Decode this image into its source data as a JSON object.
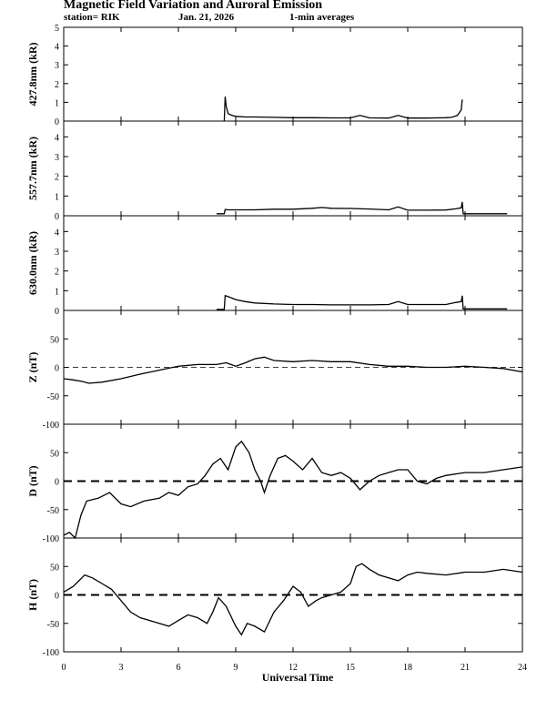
{
  "header": {
    "title": "Magnetic Field Variation and Auroral Emission",
    "station": "station= RIK",
    "date": "Jan. 21, 2026",
    "averaging": "1-min averages"
  },
  "chart_data": [
    {
      "type": "line",
      "id": "p427",
      "ylabel": "427.8nm (kR)",
      "ylim": [
        0,
        5
      ],
      "yticks": [
        0,
        1,
        2,
        3,
        4,
        5
      ],
      "grid": false,
      "xlim": [
        0,
        24
      ],
      "zero_line": "none",
      "x": [
        8.4,
        8.45,
        8.5,
        8.6,
        8.8,
        9.0,
        9.5,
        10,
        11,
        12,
        13,
        14,
        15,
        15.5,
        16,
        17,
        17.5,
        18,
        19,
        19.5,
        20,
        20.3,
        20.6,
        20.8,
        20.85
      ],
      "values": [
        0.0,
        1.3,
        0.8,
        0.4,
        0.3,
        0.25,
        0.22,
        0.22,
        0.2,
        0.18,
        0.18,
        0.17,
        0.17,
        0.3,
        0.17,
        0.16,
        0.3,
        0.16,
        0.16,
        0.17,
        0.18,
        0.2,
        0.3,
        0.6,
        1.15
      ]
    },
    {
      "type": "line",
      "id": "p557",
      "ylabel": "557.7nm (kR)",
      "ylim": [
        0,
        4.8
      ],
      "yticks": [
        0,
        1,
        2,
        3,
        4
      ],
      "grid": false,
      "xlim": [
        0,
        24
      ],
      "zero_line": "none",
      "x": [
        8.0,
        8.4,
        8.45,
        8.6,
        9.0,
        10,
        11,
        12,
        13,
        13.5,
        14,
        15,
        16,
        17,
        17.5,
        18,
        19,
        20,
        20.5,
        20.8,
        20.85,
        20.9,
        21,
        22,
        23,
        23.2
      ],
      "values": [
        0.1,
        0.1,
        0.32,
        0.3,
        0.3,
        0.3,
        0.33,
        0.33,
        0.38,
        0.42,
        0.38,
        0.37,
        0.34,
        0.3,
        0.45,
        0.28,
        0.28,
        0.29,
        0.35,
        0.4,
        0.7,
        0.1,
        0.1,
        0.1,
        0.1,
        0.1
      ]
    },
    {
      "type": "line",
      "id": "p630",
      "ylabel": "630.0nm (kR)",
      "ylim": [
        0,
        4.8
      ],
      "yticks": [
        0,
        1,
        2,
        3,
        4
      ],
      "grid": false,
      "xlim": [
        0,
        24
      ],
      "zero_line": "none",
      "x": [
        8.0,
        8.4,
        8.45,
        8.6,
        9.0,
        9.5,
        10,
        11,
        12,
        13,
        14,
        15,
        16,
        17,
        17.5,
        18,
        19,
        20,
        20.5,
        20.8,
        20.85,
        20.9,
        21,
        22,
        23,
        23.2
      ],
      "values": [
        0.05,
        0.05,
        0.75,
        0.7,
        0.55,
        0.45,
        0.38,
        0.33,
        0.3,
        0.3,
        0.28,
        0.28,
        0.28,
        0.3,
        0.45,
        0.3,
        0.3,
        0.3,
        0.4,
        0.45,
        0.75,
        0.08,
        0.08,
        0.08,
        0.08,
        0.08
      ]
    },
    {
      "type": "line",
      "id": "pz",
      "ylabel": "Z (nT)",
      "ylim": [
        -100,
        100
      ],
      "yticks": [
        -100,
        -50,
        0,
        50
      ],
      "grid": false,
      "xlim": [
        0,
        24
      ],
      "zero_line": "thin",
      "x": [
        0,
        0.5,
        1,
        1.3,
        2,
        3,
        4,
        5,
        6,
        7,
        8,
        8.5,
        9,
        9.5,
        10,
        10.5,
        11,
        12,
        13,
        14,
        15,
        16,
        17,
        18,
        19,
        20,
        21,
        22,
        23,
        24
      ],
      "values": [
        -20,
        -22,
        -25,
        -28,
        -26,
        -20,
        -12,
        -5,
        2,
        5,
        5,
        8,
        2,
        8,
        15,
        18,
        12,
        10,
        12,
        10,
        10,
        5,
        2,
        2,
        0,
        0,
        2,
        0,
        -2,
        -8
      ]
    },
    {
      "type": "line",
      "id": "pd",
      "ylabel": "D (nT)",
      "ylim": [
        -100,
        100
      ],
      "yticks": [
        -100,
        -50,
        0,
        50
      ],
      "grid": false,
      "xlim": [
        0,
        24
      ],
      "zero_line": "dashed",
      "x": [
        0,
        0.3,
        0.6,
        0.9,
        1.2,
        1.8,
        2.4,
        3,
        3.5,
        4.2,
        5,
        5.5,
        6,
        6.5,
        7,
        7.4,
        7.8,
        8.2,
        8.6,
        9,
        9.3,
        9.7,
        10,
        10.3,
        10.5,
        10.8,
        11.2,
        11.6,
        12,
        12.5,
        13,
        13.5,
        14,
        14.5,
        15,
        15.5,
        16,
        16.5,
        17,
        17.5,
        18,
        18.5,
        19,
        19.5,
        20,
        21,
        22,
        23,
        24
      ],
      "values": [
        -95,
        -90,
        -100,
        -60,
        -35,
        -30,
        -20,
        -40,
        -45,
        -35,
        -30,
        -20,
        -25,
        -10,
        -5,
        10,
        30,
        40,
        20,
        60,
        70,
        50,
        20,
        0,
        -20,
        10,
        40,
        45,
        35,
        20,
        40,
        15,
        10,
        15,
        5,
        -15,
        0,
        10,
        15,
        20,
        20,
        0,
        -5,
        5,
        10,
        15,
        15,
        20,
        25
      ]
    },
    {
      "type": "line",
      "id": "ph",
      "ylabel": "H (nT)",
      "ylim": [
        -100,
        100
      ],
      "yticks": [
        -100,
        -50,
        0,
        50
      ],
      "grid": false,
      "xlim": [
        0,
        24
      ],
      "zero_line": "dashed",
      "x": [
        0,
        0.5,
        0.8,
        1.1,
        1.5,
        2,
        2.5,
        3,
        3.5,
        4,
        5,
        5.5,
        6,
        6.5,
        7,
        7.5,
        7.8,
        8.1,
        8.5,
        9,
        9.3,
        9.6,
        10,
        10.5,
        11,
        11.5,
        12,
        12.4,
        12.8,
        13.2,
        13.5,
        14,
        14.5,
        15,
        15.3,
        15.6,
        16,
        16.5,
        17,
        17.5,
        18,
        18.5,
        19,
        20,
        21,
        22,
        23,
        24
      ],
      "values": [
        5,
        15,
        25,
        35,
        30,
        20,
        10,
        -10,
        -30,
        -40,
        -50,
        -55,
        -45,
        -35,
        -40,
        -50,
        -30,
        -5,
        -20,
        -55,
        -70,
        -50,
        -55,
        -65,
        -30,
        -10,
        15,
        5,
        -20,
        -10,
        -5,
        0,
        5,
        20,
        50,
        55,
        45,
        35,
        30,
        25,
        35,
        40,
        38,
        35,
        40,
        40,
        45,
        40
      ]
    }
  ],
  "xaxis": {
    "label": "Universal Time",
    "ticks": [
      0,
      3,
      6,
      9,
      12,
      15,
      18,
      21,
      24
    ]
  }
}
